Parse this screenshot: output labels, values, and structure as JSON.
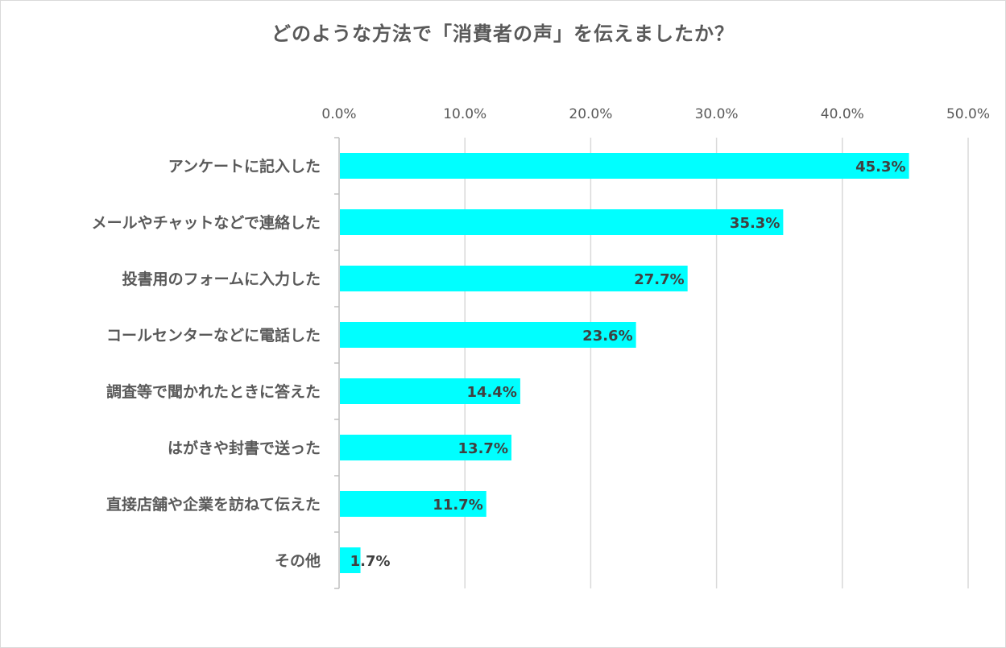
{
  "chart_data": {
    "type": "bar",
    "orientation": "horizontal",
    "title": "どのような方法で「消費者の声」を伝えましたか？",
    "categories": [
      "アンケートに記入した",
      "メールやチャットなどで連絡した",
      "投書用のフォームに入力した",
      "コールセンターなどに電話した",
      "調査等で聞かれたときに答えた",
      "はがきや封書で送った",
      "直接店舗や企業を訪ねて伝えた",
      "その他"
    ],
    "values": [
      45.3,
      35.3,
      27.7,
      23.6,
      14.4,
      13.7,
      11.7,
      1.7
    ],
    "data_labels": [
      "45.3%",
      "35.3%",
      "27.7%",
      "23.6%",
      "14.4%",
      "13.7%",
      "11.7%",
      "1.7%"
    ],
    "xlim": [
      0,
      50
    ],
    "x_ticks": [
      0,
      10,
      20,
      30,
      40,
      50
    ],
    "x_tick_labels": [
      "0.0%",
      "10.0%",
      "20.0%",
      "30.0%",
      "40.0%",
      "50.0%"
    ],
    "x_axis_position": "top",
    "bar_color": "#00FFFF",
    "grid": true,
    "legend": "none"
  }
}
